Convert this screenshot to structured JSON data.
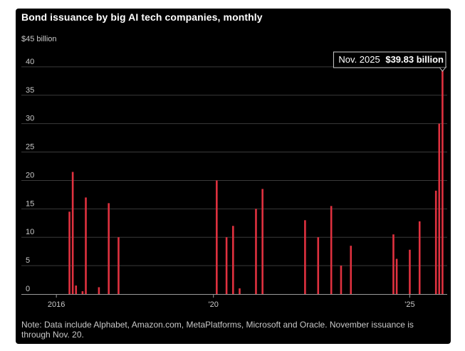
{
  "chart_data": {
    "type": "bar",
    "title": "Bond issuance by big AI tech companies, monthly",
    "yunit_label": "$45 billion",
    "yticks": [
      "40",
      "35",
      "30",
      "25",
      "20",
      "15",
      "10",
      "5",
      "0"
    ],
    "ytick_values": [
      40,
      35,
      30,
      25,
      20,
      15,
      10,
      5,
      0
    ],
    "ylim": [
      0,
      45
    ],
    "xticks": [
      {
        "label": "2016",
        "date": "2016-01"
      },
      {
        "label": "'20",
        "date": "2020-01"
      },
      {
        "label": "'25",
        "date": "2025-01"
      }
    ],
    "x_range": [
      "2015-06",
      "2025-12"
    ],
    "bar_color": "#e0313f",
    "grid": true,
    "points": [
      {
        "date": "2016-05",
        "value": 14.5
      },
      {
        "date": "2016-06",
        "value": 21.5
      },
      {
        "date": "2016-07",
        "value": 1.5
      },
      {
        "date": "2016-09",
        "value": 0.5
      },
      {
        "date": "2016-10",
        "value": 17
      },
      {
        "date": "2017-02",
        "value": 1.2
      },
      {
        "date": "2017-05",
        "value": 16
      },
      {
        "date": "2017-08",
        "value": 10
      },
      {
        "date": "2020-02",
        "value": 20
      },
      {
        "date": "2020-05",
        "value": 10
      },
      {
        "date": "2020-07",
        "value": 12
      },
      {
        "date": "2020-09",
        "value": 1
      },
      {
        "date": "2021-02",
        "value": 15
      },
      {
        "date": "2021-04",
        "value": 18.5
      },
      {
        "date": "2022-05",
        "value": 13
      },
      {
        "date": "2022-09",
        "value": 10
      },
      {
        "date": "2023-01",
        "value": 15.5
      },
      {
        "date": "2023-04",
        "value": 5
      },
      {
        "date": "2023-07",
        "value": 8.5
      },
      {
        "date": "2024-08",
        "value": 10.5
      },
      {
        "date": "2024-09",
        "value": 6.2
      },
      {
        "date": "2025-01",
        "value": 7.8
      },
      {
        "date": "2025-04",
        "value": 12.8
      },
      {
        "date": "2025-09",
        "value": 18.2
      },
      {
        "date": "2025-10",
        "value": 30
      },
      {
        "date": "2025-11",
        "value": 39.83
      }
    ],
    "tooltip": {
      "date_label": "Nov. 2025",
      "value_label": "$39.83 billion"
    }
  },
  "note": "Note: Data include Alphabet, Amazon.com, MetaPlatforms, Microsoft and Oracle. November issuance is through Nov. 20."
}
